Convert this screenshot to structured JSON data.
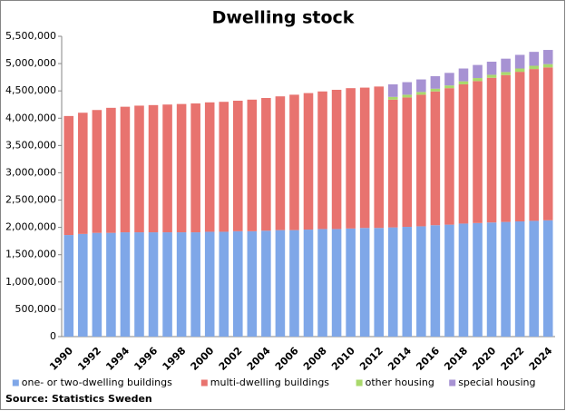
{
  "chart_data": {
    "type": "stacked-bar",
    "title": "Dwelling stock",
    "source": "Source: Statistics Sweden",
    "categories": [
      "1990",
      null,
      "1992",
      null,
      "1994",
      null,
      "1996",
      null,
      "1998",
      null,
      "2000",
      null,
      "2002",
      null,
      "2004",
      null,
      "2006",
      null,
      "2008",
      null,
      "2010",
      null,
      "2012",
      null,
      "2014",
      null,
      "2016",
      null,
      "2018",
      null,
      "2020",
      null,
      "2022",
      null,
      "2024"
    ],
    "series": [
      {
        "name": "one- or two-dwelling buildings",
        "color": "#7fa7e8",
        "values": [
          1860000,
          1880000,
          1900000,
          1900000,
          1910000,
          1910000,
          1910000,
          1910000,
          1910000,
          1910000,
          1920000,
          1920000,
          1930000,
          1930000,
          1940000,
          1950000,
          1950000,
          1960000,
          1970000,
          1970000,
          1980000,
          1990000,
          1990000,
          2000000,
          2010000,
          2020000,
          2040000,
          2050000,
          2070000,
          2080000,
          2090000,
          2100000,
          2110000,
          2120000,
          2130000
        ]
      },
      {
        "name": "multi-dwelling buildings",
        "color": "#e8736f",
        "values": [
          2180000,
          2220000,
          2250000,
          2290000,
          2300000,
          2320000,
          2330000,
          2340000,
          2350000,
          2360000,
          2370000,
          2380000,
          2390000,
          2410000,
          2430000,
          2450000,
          2480000,
          2500000,
          2520000,
          2550000,
          2570000,
          2570000,
          2590000,
          2340000,
          2370000,
          2410000,
          2450000,
          2500000,
          2550000,
          2600000,
          2650000,
          2690000,
          2740000,
          2780000,
          2800000
        ]
      },
      {
        "name": "other housing",
        "color": "#a9d96b",
        "values": [
          null,
          null,
          null,
          null,
          null,
          null,
          null,
          null,
          null,
          null,
          null,
          null,
          null,
          null,
          null,
          null,
          null,
          null,
          null,
          null,
          null,
          null,
          null,
          50000,
          50000,
          50000,
          50000,
          50000,
          55000,
          55000,
          55000,
          55000,
          60000,
          60000,
          60000
        ]
      },
      {
        "name": "special housing",
        "color": "#a792d3",
        "values": [
          null,
          null,
          null,
          null,
          null,
          null,
          null,
          null,
          null,
          null,
          null,
          null,
          null,
          null,
          null,
          null,
          null,
          null,
          null,
          null,
          null,
          null,
          null,
          230000,
          230000,
          230000,
          230000,
          230000,
          235000,
          240000,
          240000,
          245000,
          250000,
          255000,
          260000
        ]
      }
    ],
    "ylim": [
      0,
      5500000
    ],
    "yticks": [
      0,
      {
        "value": 500000,
        "label": "500,000"
      },
      {
        "value": 1000000,
        "label": "1,000,000"
      },
      {
        "value": 1500000,
        "label": "1,500,000"
      },
      {
        "value": 2000000,
        "label": "2,000,000"
      },
      {
        "value": 2500000,
        "label": "2,500,000"
      },
      {
        "value": 3000000,
        "label": "3,000,000"
      },
      {
        "value": 3500000,
        "label": "3,500,000"
      },
      {
        "value": 4000000,
        "label": "4,000,000"
      },
      {
        "value": 4500000,
        "label": "4,500,000"
      },
      {
        "value": 5000000,
        "label": "5,000,000"
      },
      {
        "value": 5500000,
        "label": "5,500,000"
      }
    ],
    "grid": false,
    "legend": "bottom"
  }
}
